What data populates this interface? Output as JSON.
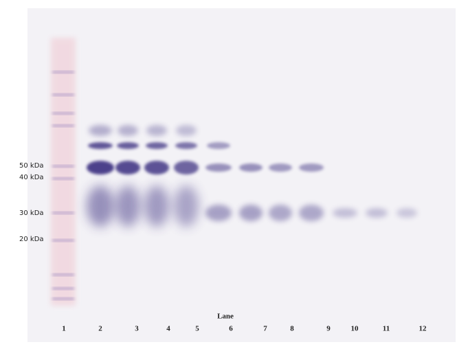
{
  "markers": [
    "50 kDa",
    "40 kDa",
    "30 kDa",
    "20 kDa"
  ],
  "axis_label": "Lane",
  "lanes": [
    "1",
    "2",
    "3",
    "4",
    "5",
    "6",
    "7",
    "8",
    "9",
    "10",
    "11",
    "12"
  ]
}
